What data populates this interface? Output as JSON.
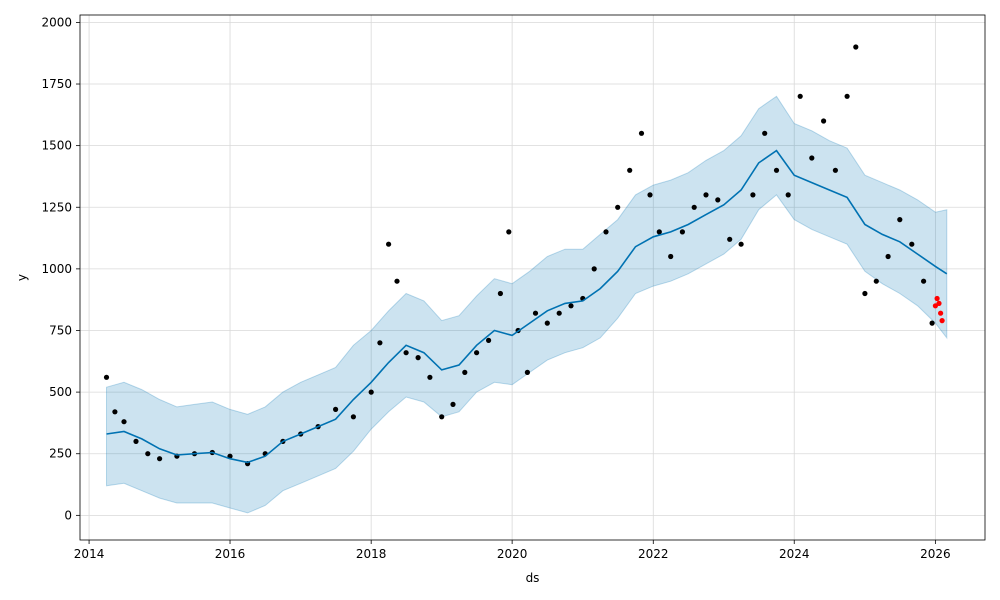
{
  "chart_data": {
    "type": "line",
    "title": "",
    "xlabel": "ds",
    "ylabel": "y",
    "xlim": [
      "2013-11-15",
      "2026-09-15"
    ],
    "ylim": [
      -100,
      2030
    ],
    "grid": true,
    "x_ticks": [
      "2014",
      "2016",
      "2018",
      "2020",
      "2022",
      "2024",
      "2026"
    ],
    "y_ticks": [
      0,
      250,
      500,
      750,
      1000,
      1250,
      1500,
      1750,
      2000
    ],
    "colors": {
      "observed": "#000000",
      "forecast_line": "#0072B2",
      "uncertainty_band": "#0072B2",
      "recent_actual": "#ff0000",
      "grid": "#d9d9d9"
    },
    "series": [
      {
        "name": "yhat",
        "x": [
          "2014-04-01",
          "2014-07-01",
          "2014-10-01",
          "2015-01-01",
          "2015-04-01",
          "2015-07-01",
          "2015-10-01",
          "2016-01-01",
          "2016-04-01",
          "2016-07-01",
          "2016-10-01",
          "2017-01-01",
          "2017-04-01",
          "2017-07-01",
          "2017-10-01",
          "2018-01-01",
          "2018-04-01",
          "2018-07-01",
          "2018-10-01",
          "2019-01-01",
          "2019-04-01",
          "2019-07-01",
          "2019-10-01",
          "2020-01-01",
          "2020-04-01",
          "2020-07-01",
          "2020-10-01",
          "2021-01-01",
          "2021-04-01",
          "2021-07-01",
          "2021-10-01",
          "2022-01-01",
          "2022-04-01",
          "2022-07-01",
          "2022-10-01",
          "2023-01-01",
          "2023-04-01",
          "2023-07-01",
          "2023-10-01",
          "2024-01-01",
          "2024-04-01",
          "2024-07-01",
          "2024-10-01",
          "2025-01-01",
          "2025-04-01",
          "2025-07-01",
          "2025-10-01",
          "2026-01-01",
          "2026-03-01"
        ],
        "y": [
          330,
          340,
          310,
          270,
          245,
          250,
          255,
          230,
          215,
          240,
          300,
          330,
          360,
          390,
          470,
          540,
          620,
          690,
          660,
          590,
          610,
          690,
          750,
          730,
          780,
          830,
          860,
          870,
          920,
          990,
          1090,
          1130,
          1150,
          1180,
          1220,
          1260,
          1320,
          1430,
          1480,
          1380,
          1350,
          1320,
          1290,
          1180,
          1140,
          1110,
          1060,
          1010,
          980
        ],
        "lower": [
          120,
          130,
          100,
          70,
          50,
          50,
          50,
          30,
          10,
          40,
          100,
          130,
          160,
          190,
          260,
          350,
          420,
          480,
          460,
          400,
          420,
          500,
          540,
          530,
          580,
          630,
          660,
          680,
          720,
          800,
          900,
          930,
          950,
          980,
          1020,
          1060,
          1120,
          1240,
          1300,
          1200,
          1160,
          1130,
          1100,
          990,
          940,
          900,
          850,
          780,
          720
        ],
        "upper": [
          520,
          540,
          510,
          470,
          440,
          450,
          460,
          430,
          410,
          440,
          500,
          540,
          570,
          600,
          690,
          750,
          830,
          900,
          870,
          790,
          810,
          890,
          960,
          940,
          990,
          1050,
          1080,
          1080,
          1140,
          1200,
          1300,
          1340,
          1360,
          1390,
          1440,
          1480,
          1540,
          1650,
          1700,
          1590,
          1560,
          1520,
          1490,
          1380,
          1350,
          1320,
          1280,
          1230,
          1240
        ]
      },
      {
        "name": "y",
        "x": [
          "2014-04-01",
          "2014-05-15",
          "2014-07-01",
          "2014-09-01",
          "2014-11-01",
          "2015-01-01",
          "2015-04-01",
          "2015-07-01",
          "2015-10-01",
          "2016-01-01",
          "2016-04-01",
          "2016-07-01",
          "2016-10-01",
          "2017-01-01",
          "2017-04-01",
          "2017-07-01",
          "2017-10-01",
          "2018-01-01",
          "2018-02-15",
          "2018-04-01",
          "2018-05-15",
          "2018-07-01",
          "2018-09-01",
          "2018-11-01",
          "2019-01-01",
          "2019-03-01",
          "2019-05-01",
          "2019-07-01",
          "2019-09-01",
          "2019-11-01",
          "2019-12-15",
          "2020-02-01",
          "2020-03-20",
          "2020-05-01",
          "2020-07-01",
          "2020-09-01",
          "2020-11-01",
          "2021-01-01",
          "2021-03-01",
          "2021-05-01",
          "2021-07-01",
          "2021-09-01",
          "2021-11-01",
          "2021-12-15",
          "2022-02-01",
          "2022-04-01",
          "2022-06-01",
          "2022-08-01",
          "2022-10-01",
          "2022-12-01",
          "2023-02-01",
          "2023-04-01",
          "2023-06-01",
          "2023-08-01",
          "2023-10-01",
          "2023-12-01",
          "2024-02-01",
          "2024-04-01",
          "2024-06-01",
          "2024-08-01",
          "2024-10-01",
          "2024-11-15",
          "2025-01-01",
          "2025-03-01",
          "2025-05-01",
          "2025-07-01",
          "2025-09-01",
          "2025-11-01",
          "2025-12-15"
        ],
        "y": [
          560,
          420,
          380,
          300,
          250,
          230,
          240,
          250,
          255,
          240,
          210,
          250,
          300,
          330,
          360,
          430,
          400,
          500,
          700,
          1100,
          950,
          660,
          640,
          560,
          400,
          450,
          580,
          660,
          710,
          900,
          1150,
          750,
          580,
          820,
          780,
          820,
          850,
          880,
          1000,
          1150,
          1250,
          1400,
          1550,
          1300,
          1150,
          1050,
          1150,
          1250,
          1300,
          1280,
          1120,
          1100,
          1300,
          1550,
          1400,
          1300,
          1700,
          1450,
          1600,
          1400,
          1700,
          1900,
          900,
          950,
          1050,
          1200,
          1100,
          950,
          780
        ]
      },
      {
        "name": "actual",
        "x": [
          "2026-01-01",
          "2026-01-10",
          "2026-01-20",
          "2026-01-28",
          "2026-02-05"
        ],
        "y": [
          850,
          880,
          860,
          820,
          790
        ]
      }
    ]
  }
}
